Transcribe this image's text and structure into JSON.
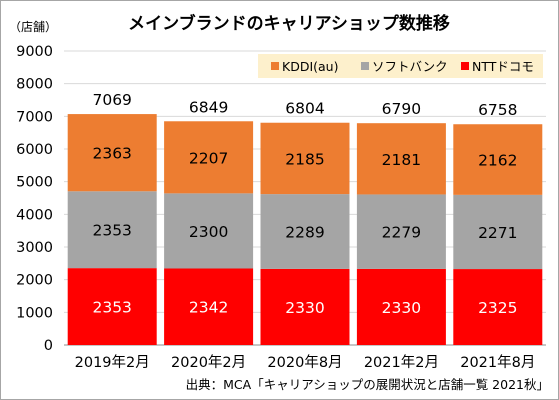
{
  "chart_data": {
    "type": "bar",
    "stacked": true,
    "title": "メインブランドのキャリアショップ数推移",
    "unit_label": "（店舗）",
    "categories": [
      "2019年2月",
      "2020年2月",
      "2020年8月",
      "2021年2月",
      "2021年8月"
    ],
    "series": [
      {
        "name": "NTTドコモ",
        "color": "#ff0000",
        "values": [
          2353,
          2342,
          2330,
          2330,
          2325
        ]
      },
      {
        "name": "ソフトバンク",
        "color": "#a5a5a5",
        "values": [
          2353,
          2300,
          2289,
          2279,
          2271
        ]
      },
      {
        "name": "KDDI(au)",
        "color": "#ed7d31",
        "values": [
          2363,
          2207,
          2185,
          2181,
          2162
        ]
      }
    ],
    "totals": [
      7069,
      6849,
      6804,
      6790,
      6758
    ],
    "ylim": [
      0,
      9000
    ],
    "yticks": [
      0,
      1000,
      2000,
      3000,
      4000,
      5000,
      6000,
      7000,
      8000,
      9000
    ],
    "grid": true,
    "legend_position": "top-right",
    "legend_order": [
      "KDDI(au)",
      "ソフトバンク",
      "NTTドコモ"
    ],
    "legend_background": "#fdf0cc",
    "source": "出典：MCA「キャリアショップの展開状況と店舗一覧 2021秋」"
  }
}
